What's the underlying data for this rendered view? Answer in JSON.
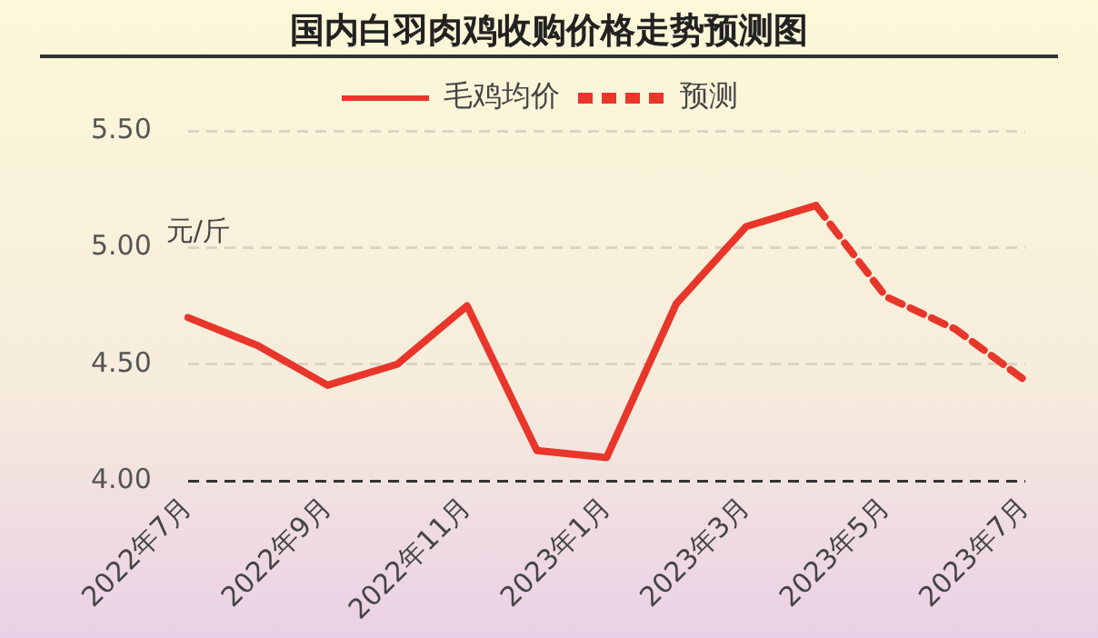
{
  "chart_data": {
    "type": "line",
    "title": "国内白羽肉鸡收购价格走势预测图",
    "ylabel": "元/斤",
    "categories": [
      "2022年7月",
      null,
      "2022年9月",
      null,
      "2022年11月",
      null,
      "2023年1月",
      null,
      "2023年3月",
      null,
      "2023年5月",
      null,
      "2023年7月"
    ],
    "series": [
      {
        "name": "毛鸡均价",
        "color": "#e8362b",
        "line_style": "solid",
        "values": [
          4.7,
          4.58,
          4.41,
          4.5,
          4.75,
          4.13,
          4.1,
          4.76,
          5.09,
          5.18,
          null,
          null,
          null
        ]
      },
      {
        "name": "预测",
        "color": "#e8362b",
        "line_style": "dashed",
        "values": [
          null,
          null,
          null,
          null,
          null,
          null,
          null,
          null,
          null,
          5.18,
          4.79,
          4.65,
          4.43
        ]
      }
    ],
    "ylim": [
      4.0,
      5.5
    ],
    "yticks": [
      {
        "value": 4.0,
        "label": "4.00"
      },
      {
        "value": 4.5,
        "label": "4.50"
      },
      {
        "value": 5.0,
        "label": "5.00"
      },
      {
        "value": 5.5,
        "label": "5.50"
      }
    ],
    "grid": "y",
    "legend": "top",
    "marker": "none"
  }
}
